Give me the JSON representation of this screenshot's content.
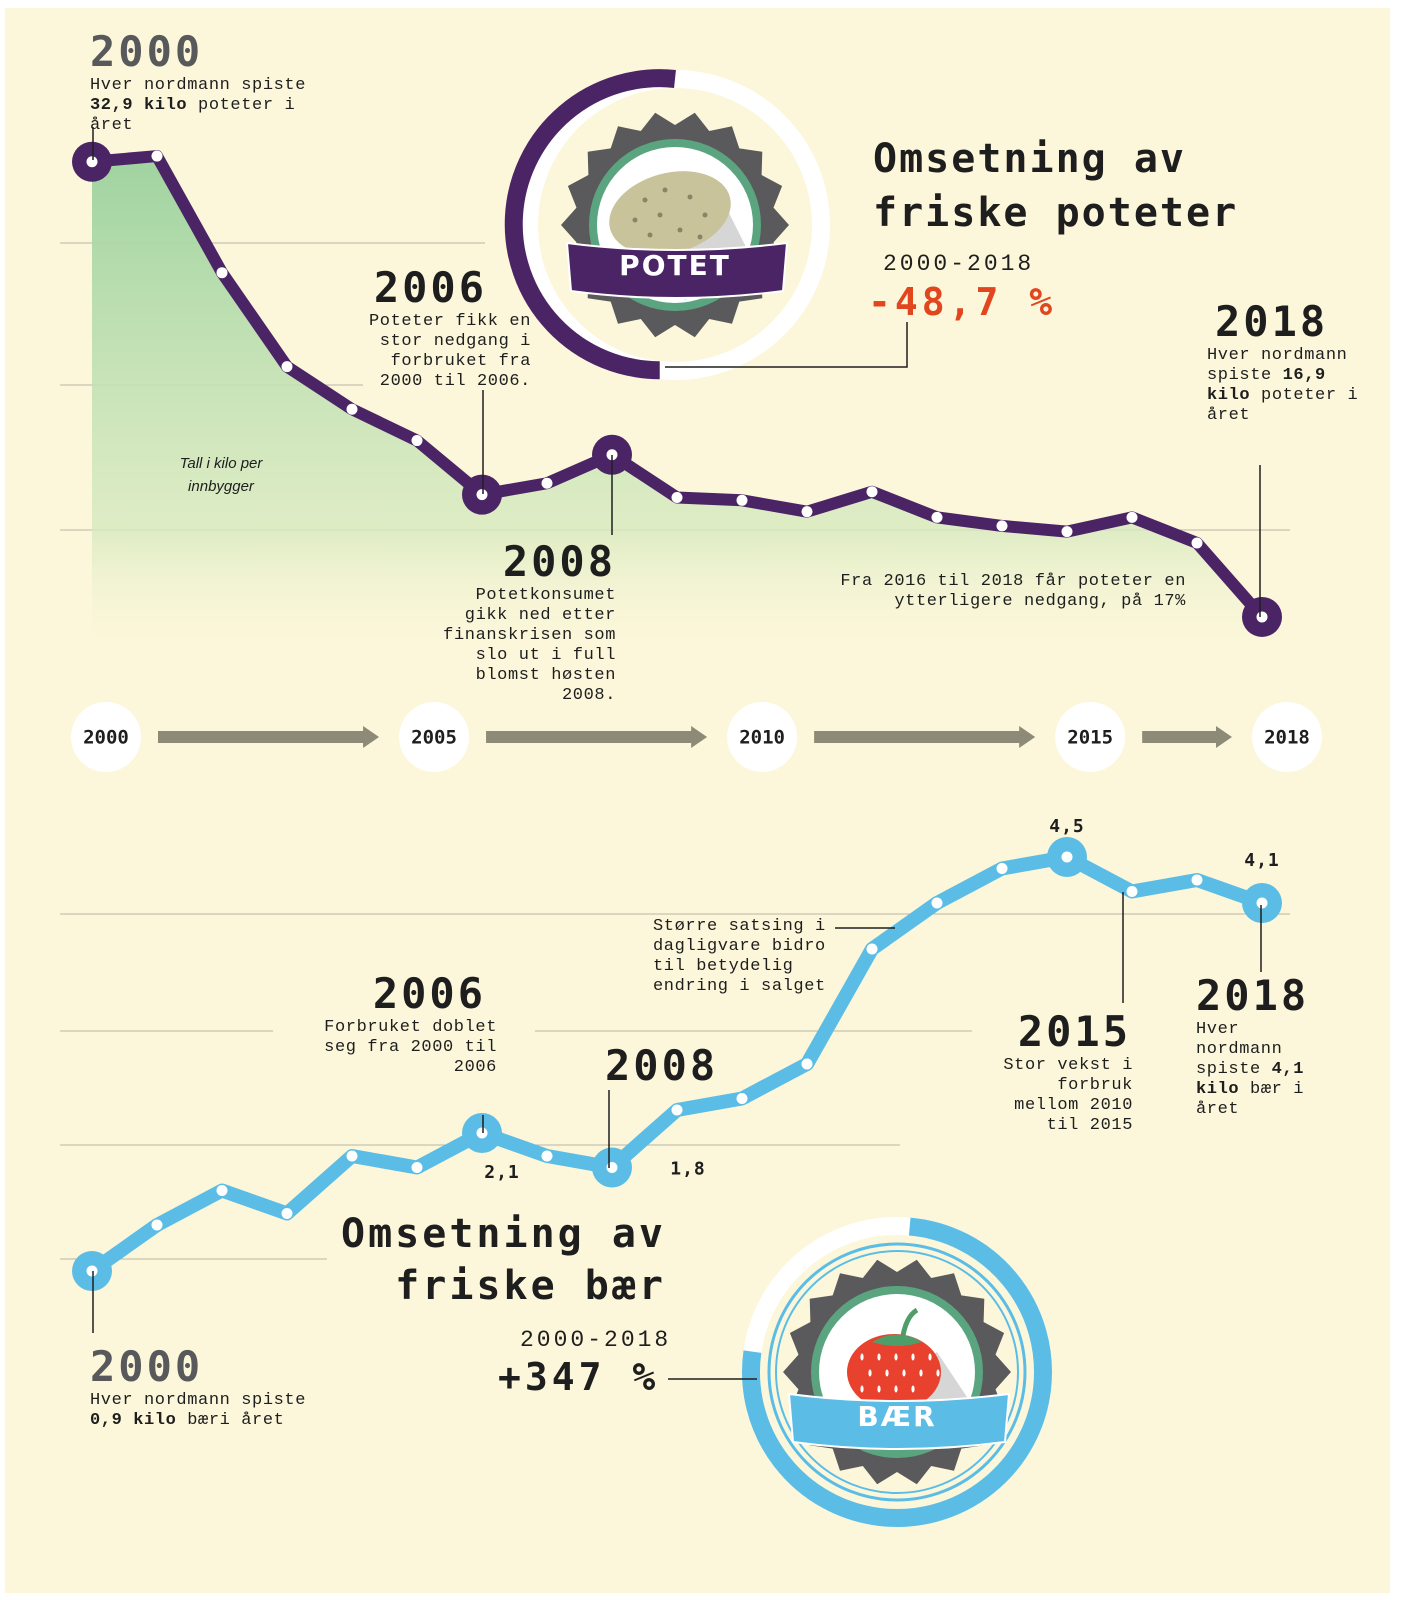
{
  "chart_data": [
    {
      "type": "line",
      "title": "Omsetning av friske poteter",
      "subtitle": "2000-2018",
      "change": "-48,7 %",
      "badge": "POTET",
      "note": "Tall i kilo per innbygger",
      "x": [
        2000,
        2001,
        2002,
        2003,
        2004,
        2005,
        2006,
        2007,
        2008,
        2009,
        2010,
        2011,
        2012,
        2013,
        2014,
        2015,
        2016,
        2017,
        2018
      ],
      "values": [
        32.9,
        33.1,
        29.0,
        25.7,
        24.2,
        23.1,
        21.2,
        21.6,
        22.6,
        21.1,
        21.0,
        20.6,
        21.3,
        20.4,
        20.1,
        19.9,
        20.4,
        19.5,
        16.9
      ],
      "xlim": [
        2000,
        2018
      ],
      "xticks": [
        2000,
        2005,
        2010,
        2015,
        2018
      ],
      "ylim": [
        15,
        35
      ],
      "color": "#4b2466",
      "annotations": [
        {
          "year": "2000",
          "text": [
            "Hver nordmann spiste",
            "32,9 kilo",
            "poteter i året"
          ]
        },
        {
          "year": "2006",
          "text": [
            "Poteter fikk en stor nedgang i forbruket fra 2000 til 2006."
          ]
        },
        {
          "year": "2008",
          "text": [
            "Potetkonsumet gikk ned etter finanskrisen som slo ut i full blomst høsten 2008."
          ]
        },
        {
          "year": "2018",
          "text": [
            "Hver nordmann spiste",
            "16,9 kilo",
            "poteter i året"
          ]
        },
        {
          "text": [
            "Fra 2016 til 2018 får poteter en ytterligere nedgang, på 17%"
          ]
        }
      ]
    },
    {
      "type": "line",
      "title": "Omsetning av friske bær",
      "subtitle": "2000-2018",
      "change": "+347 %",
      "badge": "BÆR",
      "x": [
        2000,
        2001,
        2002,
        2003,
        2004,
        2005,
        2006,
        2007,
        2008,
        2009,
        2010,
        2011,
        2012,
        2013,
        2014,
        2015,
        2016,
        2017,
        2018
      ],
      "values": [
        0.9,
        1.3,
        1.6,
        1.4,
        1.9,
        1.8,
        2.1,
        1.9,
        1.8,
        2.3,
        2.4,
        2.7,
        3.7,
        4.1,
        4.4,
        4.5,
        4.2,
        4.3,
        4.1
      ],
      "value_labels": [
        null,
        null,
        null,
        null,
        null,
        null,
        "2,1",
        null,
        "1,8",
        null,
        null,
        null,
        null,
        null,
        null,
        "4,5",
        null,
        null,
        "4,1"
      ],
      "xlim": [
        2000,
        2018
      ],
      "ylim": [
        0,
        5
      ],
      "color": "#5bbde6",
      "annotations": [
        {
          "year": "2000",
          "text": [
            "Hver nordmann spiste",
            "0,9 kilo",
            "bæri året"
          ]
        },
        {
          "year": "2006",
          "text": [
            "Forbruket doblet seg fra 2000 til 2006"
          ]
        },
        {
          "year": "2008"
        },
        {
          "year": "2015",
          "text": [
            "Stor vekst i forbruk mellom 2010 til 2015"
          ]
        },
        {
          "year": "2018",
          "text": [
            "Hver nordmann spiste",
            "4,1 kilo",
            "bær i året"
          ]
        },
        {
          "text": [
            "Større satsing i dagligvare bidro til betydelig endring i salget"
          ]
        }
      ]
    }
  ]
}
